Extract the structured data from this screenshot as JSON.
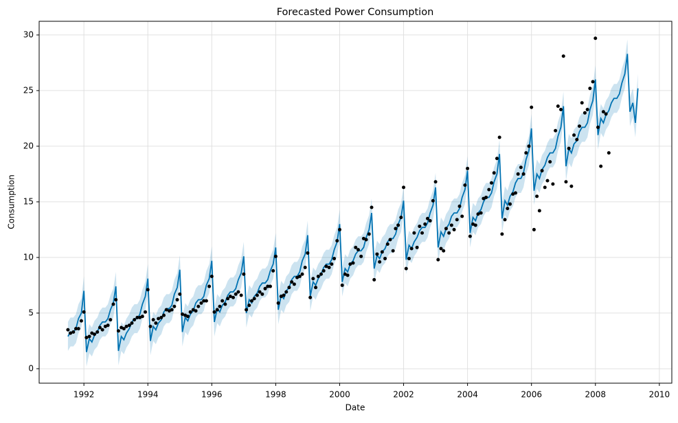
{
  "chart_data": {
    "type": "forecast",
    "title": "Forecasted Power Consumption",
    "x_label": "Date",
    "y_label": "Consumption",
    "xlim": [
      1990.6,
      2010.39
    ],
    "ylim": [
      -1.3,
      31.23
    ],
    "xticks": [
      1992,
      1994,
      1996,
      1998,
      2000,
      2002,
      2004,
      2006,
      2008,
      2010
    ],
    "yticks": [
      0,
      5,
      10,
      15,
      20,
      25,
      30
    ],
    "grid": true,
    "line_color": "#0072b2",
    "band_color": "#0072b2",
    "point_color": "#000000",
    "x": [
      1991.5,
      1991.58,
      1991.67,
      1991.75,
      1991.83,
      1991.92,
      1992,
      1992.08,
      1992.17,
      1992.25,
      1992.33,
      1992.42,
      1992.5,
      1992.58,
      1992.67,
      1992.75,
      1992.83,
      1992.92,
      1993,
      1993.08,
      1993.17,
      1993.25,
      1993.33,
      1993.42,
      1993.5,
      1993.58,
      1993.67,
      1993.75,
      1993.83,
      1993.92,
      1994,
      1994.08,
      1994.17,
      1994.25,
      1994.33,
      1994.42,
      1994.5,
      1994.58,
      1994.67,
      1994.75,
      1994.83,
      1994.92,
      1995,
      1995.08,
      1995.17,
      1995.25,
      1995.33,
      1995.42,
      1995.5,
      1995.58,
      1995.67,
      1995.75,
      1995.83,
      1995.92,
      1996,
      1996.08,
      1996.17,
      1996.25,
      1996.33,
      1996.42,
      1996.5,
      1996.58,
      1996.67,
      1996.75,
      1996.83,
      1996.92,
      1997,
      1997.08,
      1997.17,
      1997.25,
      1997.33,
      1997.42,
      1997.5,
      1997.58,
      1997.67,
      1997.75,
      1997.83,
      1997.92,
      1998,
      1998.08,
      1998.17,
      1998.25,
      1998.33,
      1998.42,
      1998.5,
      1998.58,
      1998.67,
      1998.75,
      1998.83,
      1998.92,
      1999,
      1999.08,
      1999.17,
      1999.25,
      1999.33,
      1999.42,
      1999.5,
      1999.58,
      1999.67,
      1999.75,
      1999.83,
      1999.92,
      2000,
      2000.08,
      2000.17,
      2000.25,
      2000.33,
      2000.42,
      2000.5,
      2000.58,
      2000.67,
      2000.75,
      2000.83,
      2000.92,
      2001,
      2001.08,
      2001.17,
      2001.25,
      2001.33,
      2001.42,
      2001.5,
      2001.58,
      2001.67,
      2001.75,
      2001.83,
      2001.92,
      2002,
      2002.08,
      2002.17,
      2002.25,
      2002.33,
      2002.42,
      2002.5,
      2002.58,
      2002.67,
      2002.75,
      2002.83,
      2002.92,
      2003,
      2003.08,
      2003.17,
      2003.25,
      2003.33,
      2003.42,
      2003.5,
      2003.58,
      2003.67,
      2003.75,
      2003.83,
      2003.92,
      2004,
      2004.08,
      2004.17,
      2004.25,
      2004.33,
      2004.42,
      2004.5,
      2004.58,
      2004.67,
      2004.75,
      2004.83,
      2004.92,
      2005,
      2005.08,
      2005.17,
      2005.25,
      2005.33,
      2005.42,
      2005.5,
      2005.58,
      2005.67,
      2005.75,
      2005.83,
      2005.92,
      2006,
      2006.08,
      2006.17,
      2006.25,
      2006.33,
      2006.42,
      2006.5,
      2006.58,
      2006.67,
      2006.75,
      2006.83,
      2006.92,
      2007,
      2007.08,
      2007.17,
      2007.25,
      2007.33,
      2007.42,
      2007.5,
      2007.58,
      2007.67,
      2007.75,
      2007.83,
      2007.92,
      2008,
      2008.08,
      2008.17,
      2008.25,
      2008.33,
      2008.42,
      2008.5,
      2008.58,
      2008.67,
      2008.75,
      2008.83,
      2008.92,
      2009,
      2009.08,
      2009.17,
      2009.25,
      2009.33
    ],
    "forecast": [
      2.9,
      3.3,
      3.3,
      3.6,
      4.5,
      5.0,
      7.0,
      1.5,
      2.7,
      2.4,
      3.0,
      3.3,
      3.9,
      4.2,
      4.2,
      4.5,
      5.3,
      5.9,
      7.4,
      1.6,
      2.9,
      2.6,
      3.2,
      3.6,
      4.2,
      4.5,
      4.5,
      4.9,
      5.8,
      6.5,
      8.1,
      2.5,
      3.8,
      3.5,
      4.1,
      4.4,
      5.1,
      5.4,
      5.4,
      5.7,
      6.7,
      7.3,
      8.9,
      3.3,
      4.6,
      4.3,
      4.9,
      5.2,
      5.9,
      6.2,
      6.2,
      6.5,
      7.5,
      8.1,
      9.7,
      4.2,
      5.4,
      5.1,
      5.7,
      6.0,
      6.6,
      6.9,
      6.9,
      7.2,
      8.0,
      8.6,
      10.1,
      5.0,
      6.2,
      5.9,
      6.5,
      6.8,
      7.4,
      7.7,
      7.7,
      8.0,
      8.8,
      9.4,
      10.9,
      5.3,
      6.6,
      6.3,
      7.0,
      7.3,
      8.0,
      8.3,
      8.3,
      8.7,
      9.7,
      10.3,
      12.0,
      6.5,
      7.8,
      7.5,
      8.1,
      8.5,
      9.1,
      9.4,
      9.4,
      9.8,
      10.7,
      11.4,
      13.0,
      7.8,
      9.0,
      8.7,
      9.4,
      9.7,
      10.3,
      10.6,
      10.6,
      10.9,
      11.8,
      12.5,
      14.0,
      9.0,
      10.2,
      9.9,
      10.5,
      10.8,
      11.4,
      11.7,
      11.7,
      12.1,
      13.0,
      13.6,
      15.1,
      9.8,
      11.1,
      10.8,
      11.4,
      11.8,
      12.4,
      12.7,
      12.7,
      13.1,
      14.0,
      14.7,
      16.3,
      10.9,
      12.3,
      11.9,
      12.6,
      13.0,
      13.7,
      14.0,
      14.0,
      14.4,
      15.4,
      16.1,
      17.8,
      12.2,
      13.6,
      13.3,
      14.0,
      14.3,
      15.0,
      15.4,
      15.4,
      15.8,
      16.8,
      17.5,
      19.3,
      13.5,
      15.1,
      14.7,
      15.5,
      15.9,
      16.7,
      17.1,
      17.1,
      17.6,
      18.8,
      19.6,
      21.6,
      16.0,
      17.5,
      17.1,
      17.9,
      18.3,
      19.0,
      19.4,
      19.4,
      19.8,
      20.9,
      21.7,
      23.6,
      18.2,
      19.8,
      19.4,
      20.2,
      20.5,
      21.3,
      21.7,
      21.7,
      22.1,
      23.3,
      24.1,
      26.0,
      21.0,
      22.5,
      22.1,
      22.8,
      23.2,
      23.9,
      24.3,
      24.3,
      24.7,
      25.7,
      26.5,
      28.3,
      23.1,
      23.9,
      22.1,
      25.2
    ],
    "lower": [
      1.6,
      2.0,
      2.0,
      2.3,
      3.2,
      3.7,
      5.7,
      0.2,
      1.4,
      1.1,
      1.7,
      2.0,
      2.6,
      2.9,
      2.9,
      3.2,
      4.0,
      4.6,
      6.1,
      0.3,
      1.6,
      1.3,
      1.9,
      2.3,
      2.9,
      3.2,
      3.2,
      3.6,
      4.5,
      5.2,
      6.8,
      1.2,
      2.5,
      2.2,
      2.8,
      3.1,
      3.8,
      4.1,
      4.1,
      4.4,
      5.4,
      6.0,
      7.6,
      2.0,
      3.3,
      3.0,
      3.6,
      3.9,
      4.6,
      4.9,
      4.9,
      5.2,
      6.2,
      6.8,
      8.4,
      2.9,
      4.1,
      3.8,
      4.4,
      4.7,
      5.3,
      5.6,
      5.6,
      5.9,
      6.7,
      7.3,
      8.8,
      3.7,
      4.9,
      4.6,
      5.2,
      5.5,
      6.1,
      6.4,
      6.4,
      6.7,
      7.5,
      8.1,
      9.6,
      4.0,
      5.3,
      5.0,
      5.7,
      6.0,
      6.7,
      7.0,
      7.0,
      7.4,
      8.4,
      9.0,
      10.7,
      5.2,
      6.5,
      6.2,
      6.8,
      7.2,
      7.8,
      8.1,
      8.1,
      8.5,
      9.4,
      10.1,
      11.7,
      6.5,
      7.7,
      7.4,
      8.1,
      8.4,
      9.0,
      9.3,
      9.3,
      9.6,
      10.5,
      11.2,
      12.7,
      7.7,
      8.9,
      8.6,
      9.2,
      9.5,
      10.1,
      10.4,
      10.4,
      10.8,
      11.7,
      12.3,
      13.8,
      8.5,
      9.8,
      9.5,
      10.1,
      10.5,
      11.1,
      11.4,
      11.4,
      11.8,
      12.7,
      13.4,
      15.0,
      9.6,
      11.0,
      10.6,
      11.3,
      11.7,
      12.4,
      12.7,
      12.7,
      13.1,
      14.1,
      14.8,
      16.5,
      10.9,
      12.3,
      12.0,
      12.7,
      13.0,
      13.7,
      14.1,
      14.1,
      14.5,
      15.5,
      16.2,
      18.0,
      12.2,
      13.8,
      13.4,
      14.2,
      14.6,
      15.4,
      15.8,
      15.8,
      16.3,
      17.5,
      18.3,
      20.3,
      14.7,
      16.2,
      15.8,
      16.6,
      17.0,
      17.7,
      18.1,
      18.1,
      18.5,
      19.6,
      20.4,
      22.3,
      16.9,
      18.5,
      18.1,
      18.9,
      19.2,
      20.0,
      20.4,
      20.4,
      20.8,
      22.0,
      22.8,
      24.7,
      19.7,
      21.2,
      20.8,
      21.5,
      21.9,
      22.6,
      23.0,
      23.0,
      23.4,
      24.4,
      25.2,
      27.0,
      21.8,
      22.6,
      20.8,
      23.9
    ],
    "upper": [
      4.2,
      4.6,
      4.6,
      4.9,
      5.8,
      6.3,
      8.3,
      2.8,
      4.0,
      3.7,
      4.3,
      4.6,
      5.2,
      5.5,
      5.5,
      5.8,
      6.6,
      7.2,
      8.7,
      2.9,
      4.2,
      3.9,
      4.5,
      4.9,
      5.5,
      5.8,
      5.8,
      6.2,
      7.1,
      7.8,
      9.4,
      3.8,
      5.1,
      4.8,
      5.4,
      5.7,
      6.4,
      6.7,
      6.7,
      7.0,
      8.0,
      8.6,
      10.2,
      4.6,
      5.9,
      5.6,
      6.2,
      6.5,
      7.2,
      7.5,
      7.5,
      7.8,
      8.8,
      9.4,
      11.0,
      5.5,
      6.7,
      6.4,
      7.0,
      7.3,
      7.9,
      8.2,
      8.2,
      8.5,
      9.3,
      9.9,
      11.4,
      6.3,
      7.5,
      7.2,
      7.8,
      8.1,
      8.7,
      9.0,
      9.0,
      9.3,
      10.1,
      10.7,
      12.2,
      6.6,
      7.9,
      7.6,
      8.3,
      8.6,
      9.3,
      9.6,
      9.6,
      10.0,
      11.0,
      11.6,
      13.3,
      7.8,
      9.1,
      8.8,
      9.4,
      9.8,
      10.4,
      10.7,
      10.7,
      11.1,
      12.0,
      12.7,
      14.3,
      9.1,
      10.3,
      10.0,
      10.7,
      11.0,
      11.6,
      11.9,
      11.9,
      12.2,
      13.1,
      13.8,
      15.3,
      10.3,
      11.5,
      11.2,
      11.8,
      12.1,
      12.7,
      13.0,
      13.0,
      13.4,
      14.3,
      14.9,
      16.4,
      11.1,
      12.4,
      12.1,
      12.7,
      13.1,
      13.7,
      14.0,
      14.0,
      14.4,
      15.3,
      16.0,
      17.6,
      12.2,
      13.6,
      13.2,
      13.9,
      14.3,
      15.0,
      15.3,
      15.3,
      15.7,
      16.7,
      17.4,
      19.1,
      13.5,
      14.9,
      14.6,
      15.3,
      15.6,
      16.3,
      16.7,
      16.7,
      17.1,
      18.1,
      18.8,
      20.6,
      14.8,
      16.4,
      16.0,
      16.8,
      17.2,
      18.0,
      18.4,
      18.4,
      18.9,
      20.1,
      20.9,
      22.9,
      17.3,
      18.8,
      18.4,
      19.2,
      19.6,
      20.3,
      20.7,
      20.7,
      21.1,
      22.2,
      23.0,
      24.9,
      19.5,
      21.1,
      20.7,
      21.5,
      21.8,
      22.6,
      23.0,
      23.0,
      23.4,
      24.6,
      25.4,
      27.3,
      22.3,
      23.8,
      23.4,
      24.1,
      24.5,
      25.2,
      25.6,
      25.6,
      26.0,
      27.0,
      27.8,
      29.6,
      24.4,
      25.2,
      23.4,
      26.5
    ],
    "actual": [
      3.5,
      3.2,
      3.3,
      3.6,
      3.6,
      4.3,
      5.1,
      2.8,
      2.9,
      3.2,
      3.1,
      3.3,
      3.7,
      3.5,
      3.8,
      3.9,
      4.4,
      5.8,
      6.2,
      3.4,
      3.7,
      3.6,
      3.8,
      3.9,
      4.1,
      4.4,
      4.6,
      4.6,
      4.7,
      5.1,
      7.1,
      3.8,
      4.4,
      4.1,
      4.5,
      4.6,
      4.8,
      5.3,
      5.2,
      5.3,
      5.6,
      6.2,
      6.7,
      4.9,
      4.8,
      4.7,
      5.1,
      5.3,
      5.2,
      5.6,
      5.9,
      6.1,
      6.1,
      7.4,
      8.3,
      5.1,
      5.3,
      5.6,
      6.1,
      5.8,
      6.3,
      6.5,
      6.4,
      6.7,
      6.9,
      6.6,
      8.5,
      5.3,
      5.7,
      6.1,
      6.3,
      6.6,
      6.9,
      6.7,
      7.2,
      7.4,
      7.4,
      8.8,
      10.1,
      5.9,
      6.5,
      6.6,
      6.9,
      7.3,
      7.8,
      7.6,
      8.2,
      8.3,
      8.5,
      9.1,
      10.4,
      6.4,
      8.1,
      7.3,
      8.3,
      8.5,
      8.8,
      9.2,
      9.1,
      9.4,
      9.9,
      11.5,
      12.5,
      7.5,
      8.5,
      8.4,
      9.4,
      9.5,
      10.9,
      10.7,
      10.1,
      11.7,
      11.6,
      12.1,
      14.5,
      8.0,
      10.3,
      9.6,
      10.5,
      9.9,
      11.2,
      11.6,
      10.6,
      12.6,
      12.9,
      13.6,
      16.3,
      9.0,
      9.9,
      10.8,
      12.2,
      10.9,
      12.8,
      12.2,
      13.0,
      13.5,
      13.3,
      15.1,
      16.8,
      9.8,
      10.8,
      10.6,
      12.6,
      12.2,
      12.9,
      12.5,
      13.4,
      14.6,
      13.7,
      16.5,
      18.0,
      11.9,
      13.0,
      12.9,
      13.9,
      14.0,
      15.3,
      15.4,
      16.1,
      16.7,
      17.6,
      18.9,
      20.8,
      12.1,
      13.4,
      14.4,
      14.8,
      15.7,
      15.8,
      17.5,
      18.1,
      17.5,
      19.4,
      20.0,
      23.5,
      12.5,
      15.5,
      14.2,
      17.8,
      16.3,
      16.9,
      18.6,
      16.6,
      21.4,
      23.6,
      23.3,
      28.1,
      16.8,
      19.8,
      16.4,
      21.0,
      20.6,
      21.8,
      23.9,
      23.0,
      23.3,
      25.2,
      25.8,
      29.7,
      21.7,
      18.2,
      23.1,
      22.9,
      19.4,
      null,
      null,
      null,
      null,
      null,
      null,
      null,
      null,
      null,
      null,
      null
    ]
  }
}
